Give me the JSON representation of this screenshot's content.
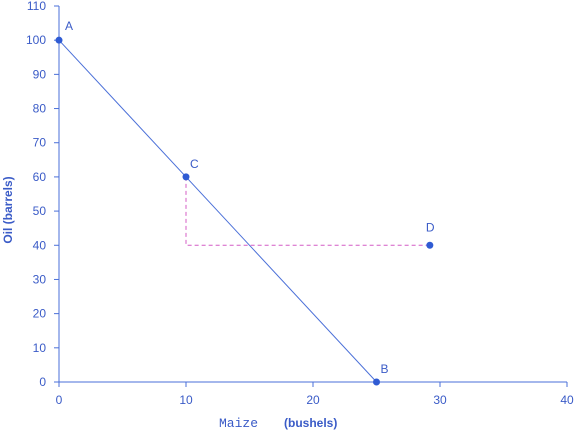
{
  "chart_data": {
    "type": "line",
    "x_axis": {
      "label": "Maize",
      "unit": "(bushels)",
      "range": [
        0,
        40
      ],
      "ticks": [
        "0",
        "10",
        "20",
        "30",
        "40"
      ]
    },
    "y_axis": {
      "label": "Oil (barrels)",
      "range": [
        0,
        110
      ],
      "ticks": [
        "0",
        "10",
        "20",
        "30",
        "40",
        "50",
        "60",
        "70",
        "80",
        "90",
        "100",
        "110"
      ]
    },
    "grid": false,
    "colors": {
      "axis": "#4a6fd8",
      "line": "#4a6fd8",
      "point": "#2f5bd3",
      "dashed": "#d45cc6",
      "text": "#3a5bc7"
    },
    "series": [
      {
        "values": [
          {
            "x": 0,
            "y": 100
          },
          {
            "x": 25,
            "y": 0
          }
        ]
      }
    ],
    "points": [
      {
        "label": "A",
        "x": 0,
        "y": 100
      },
      {
        "label": "C",
        "x": 10,
        "y": 60
      },
      {
        "label": "D",
        "x": 29.2,
        "y": 40
      },
      {
        "label": "B",
        "x": 25,
        "y": 0
      }
    ],
    "dashed_path": [
      {
        "x": 10,
        "y": 60
      },
      {
        "x": 10,
        "y": 40
      },
      {
        "x": 29.2,
        "y": 40
      }
    ]
  }
}
